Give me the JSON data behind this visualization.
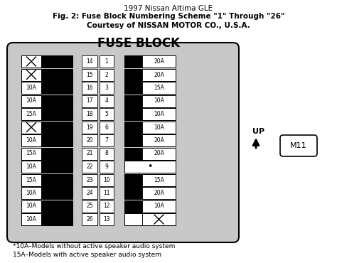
{
  "title_line1": "1997 Nissan Altima GLE",
  "title_line2": "Fig. 2: Fuse Block Numbering Scheme \"1\" Through \"26\"",
  "title_line3": "Courtesy of NISSAN MOTOR CO., U.S.A.",
  "fuse_block_label": "FUSE BLOCK",
  "footnote1": "*10A–Models without active speaker audio system",
  "footnote2": "15A–Models with active speaker audio system",
  "up_label": "UP",
  "m11_label": "M11",
  "bg_color": "#c8c8c8",
  "white": "#ffffff",
  "black": "#000000",
  "left_col_rows": [
    {
      "type": "X"
    },
    {
      "type": "X"
    },
    {
      "type": "text",
      "label": "10A"
    },
    {
      "type": "text",
      "label": "10A"
    },
    {
      "type": "text",
      "label": "15A"
    },
    {
      "type": "X"
    },
    {
      "type": "text",
      "label": "10A"
    },
    {
      "type": "text",
      "label": "15A"
    },
    {
      "type": "text",
      "label": "10A"
    },
    {
      "type": "text",
      "label": "15A"
    },
    {
      "type": "text",
      "label": "10A"
    },
    {
      "type": "text",
      "label": "10A"
    },
    {
      "type": "text",
      "label": "10A"
    }
  ],
  "mid_nums_left": [
    14,
    15,
    16,
    17,
    18,
    19,
    20,
    21,
    22,
    23,
    24,
    25,
    26
  ],
  "mid_nums_right": [
    1,
    2,
    3,
    4,
    5,
    6,
    7,
    8,
    9,
    10,
    11,
    12,
    13
  ],
  "right_col_rows": [
    {
      "type": "black_text",
      "label": "20A"
    },
    {
      "type": "black_text",
      "label": "20A"
    },
    {
      "type": "black_text",
      "label": "15A"
    },
    {
      "type": "black_text",
      "label": "10A"
    },
    {
      "type": "black_text",
      "label": "10A"
    },
    {
      "type": "black_text",
      "label": "10A"
    },
    {
      "type": "black_text",
      "label": "20A"
    },
    {
      "type": "black_text",
      "label": "20A"
    },
    {
      "type": "dot",
      "label": "•"
    },
    {
      "type": "black_text",
      "label": "15A"
    },
    {
      "type": "black_text",
      "label": "20A"
    },
    {
      "type": "black_text",
      "label": "10A"
    },
    {
      "type": "X_right"
    }
  ],
  "fig_w": 4.74,
  "fig_h": 3.7,
  "dpi": 100
}
